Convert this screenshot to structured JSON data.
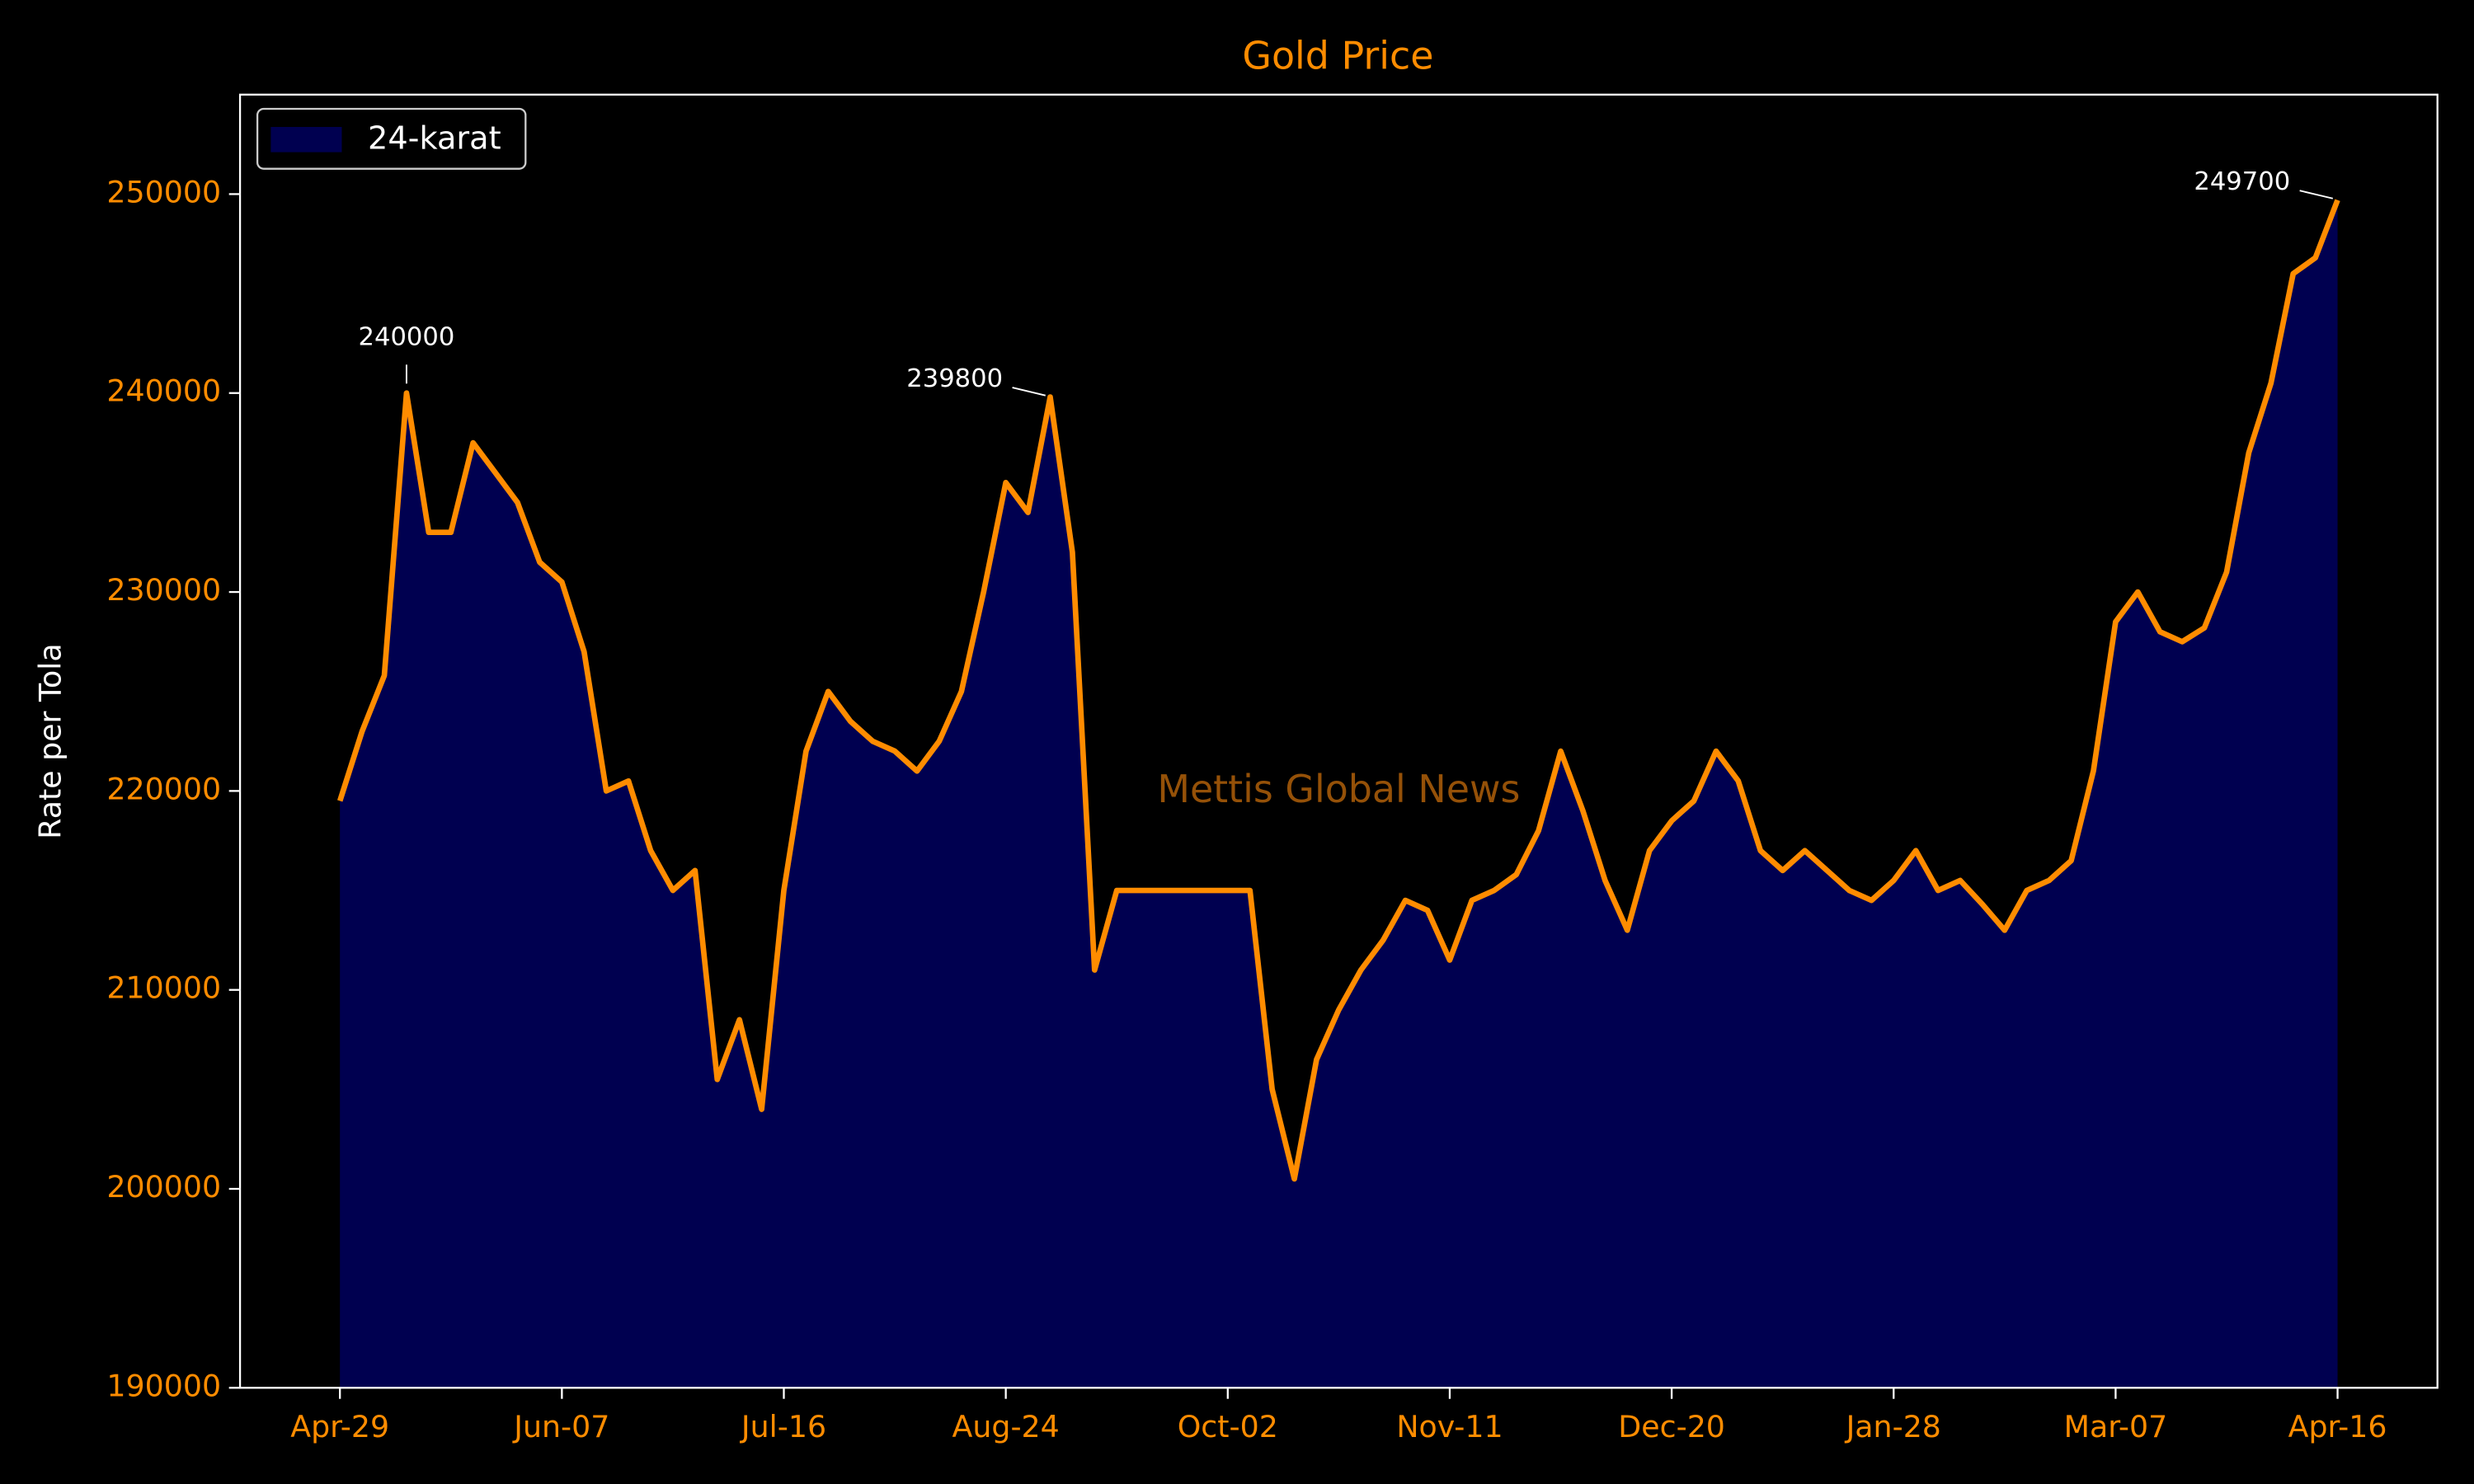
{
  "chart_data": {
    "type": "area",
    "title": "Gold Price",
    "ylabel": "Rate per Tola",
    "watermark": "Mettis Global News",
    "legend": "upper left",
    "fill_color": "#000050",
    "categories": [
      "Apr-29",
      "May-03",
      "May-07",
      "May-11",
      "May-15",
      "May-19",
      "May-23",
      "May-27",
      "May-31",
      "Jun-03",
      "Jun-07",
      "Jun-11",
      "Jun-15",
      "Jun-19",
      "Jun-23",
      "Jun-27",
      "Jul-01",
      "Jul-05",
      "Jul-09",
      "Jul-12",
      "Jul-16",
      "Jul-20",
      "Jul-24",
      "Jul-28",
      "Aug-01",
      "Aug-05",
      "Aug-09",
      "Aug-13",
      "Aug-17",
      "Aug-20",
      "Aug-24",
      "Aug-28",
      "Sep-01",
      "Sep-05",
      "Sep-09",
      "Sep-13",
      "Sep-17",
      "Sep-21",
      "Sep-25",
      "Sep-28",
      "Oct-02",
      "Oct-06",
      "Oct-10",
      "Oct-14",
      "Oct-18",
      "Oct-22",
      "Oct-26",
      "Oct-30",
      "Nov-03",
      "Nov-07",
      "Nov-11",
      "Nov-15",
      "Nov-19",
      "Nov-23",
      "Nov-27",
      "Dec-01",
      "Dec-05",
      "Dec-09",
      "Dec-13",
      "Dec-16",
      "Dec-20",
      "Dec-24",
      "Dec-28",
      "Jan-01",
      "Jan-05",
      "Jan-09",
      "Jan-13",
      "Jan-17",
      "Jan-21",
      "Jan-24",
      "Jan-28",
      "Feb-01",
      "Feb-05",
      "Feb-09",
      "Feb-13",
      "Feb-17",
      "Feb-21",
      "Feb-25",
      "Feb-29",
      "Mar-03",
      "Mar-07",
      "Mar-11",
      "Mar-15",
      "Mar-19",
      "Mar-23",
      "Mar-27",
      "Mar-31",
      "Apr-04",
      "Apr-08",
      "Apr-12",
      "Apr-16"
    ],
    "series": [
      {
        "name": "24-karat",
        "color": "#ff8c00",
        "values": [
          219500,
          223000,
          225800,
          240000,
          233000,
          233000,
          237500,
          236000,
          234500,
          231500,
          230500,
          227000,
          220000,
          220500,
          217000,
          215000,
          216000,
          205500,
          208500,
          204000,
          215000,
          222000,
          225000,
          223500,
          222500,
          222000,
          221000,
          222500,
          225000,
          230000,
          235500,
          234000,
          239800,
          232000,
          211000,
          215000,
          215000,
          215000,
          215000,
          215000,
          215000,
          215000,
          205000,
          200500,
          206500,
          209000,
          211000,
          212500,
          214500,
          214000,
          211500,
          214500,
          215000,
          215800,
          218000,
          222000,
          219000,
          215500,
          213000,
          217000,
          218500,
          219500,
          222000,
          220500,
          217000,
          216000,
          217000,
          216000,
          215000,
          214500,
          215500,
          217000,
          215000,
          215500,
          214300,
          213000,
          215000,
          215500,
          216500,
          221000,
          228500,
          230000,
          228000,
          227500,
          228200,
          231000,
          237000,
          240500,
          246000,
          246800,
          249700
        ]
      }
    ],
    "annotated": [
      "May-11",
      "Sep-01",
      "Apr-16"
    ],
    "xticks": [
      "Apr-29",
      "Jun-07",
      "Jul-16",
      "Aug-24",
      "Oct-02",
      "Nov-11",
      "Dec-20",
      "Jan-28",
      "Mar-07",
      "Apr-16"
    ],
    "ylim": [
      190000,
      255000
    ],
    "yticks": [
      190000,
      200000,
      210000,
      220000,
      230000,
      240000,
      250000
    ]
  }
}
